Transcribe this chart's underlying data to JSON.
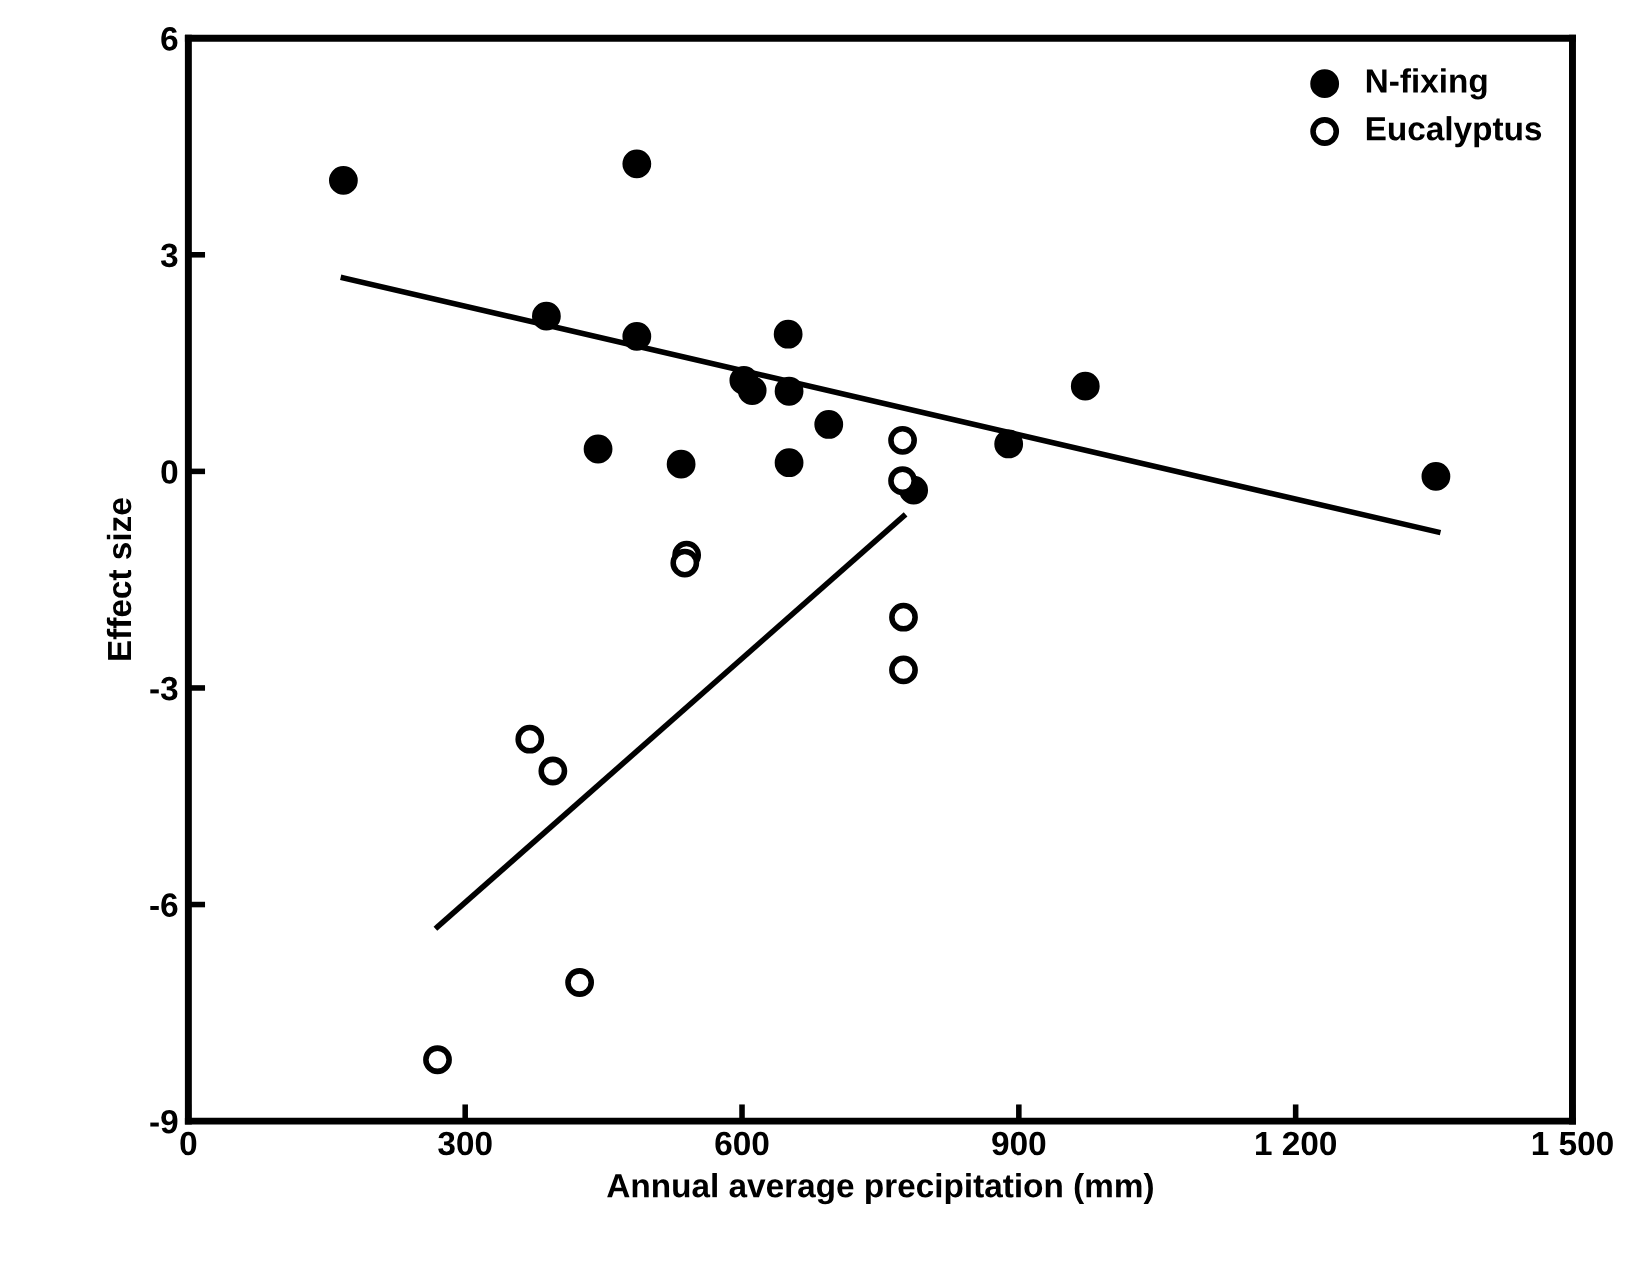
{
  "chart_data": {
    "type": "scatter",
    "xlabel": "Annual average precipitation (mm)",
    "ylabel": "Effect size",
    "xlim": [
      0,
      1500
    ],
    "xticks": [
      0,
      300,
      600,
      900,
      {
        "value": 1200,
        "label": "1 200"
      },
      {
        "value": 1500,
        "label": "1 500"
      }
    ],
    "ylim": [
      -9,
      6
    ],
    "yticks": [
      -9,
      -6,
      -3,
      0,
      3,
      6
    ],
    "grid": false,
    "legend": "top right",
    "series": [
      {
        "name": "N-fixing",
        "color": "#000000",
        "marker": "circle",
        "x": [
          168,
          486,
          388,
          486,
          650,
          602,
          611,
          651,
          694,
          444,
          534,
          651,
          786,
          972,
          889,
          1352
        ],
        "values": [
          4.03,
          4.26,
          2.15,
          1.87,
          1.9,
          1.26,
          1.12,
          1.11,
          0.65,
          0.31,
          0.1,
          0.12,
          -0.26,
          1.18,
          0.38,
          -0.07
        ]
      },
      {
        "name": "Eucalyptus",
        "color": "#ffffff",
        "marker": "circle",
        "x": [
          540,
          538,
          775,
          775,
          370,
          395,
          424,
          270,
          774,
          774
        ],
        "values": [
          -1.16,
          -1.27,
          -2.02,
          -2.75,
          -3.71,
          -4.15,
          -7.08,
          -8.15,
          0.43,
          -0.13
        ]
      },
      {
        "type": "line",
        "color": "#000000",
        "marker": "none",
        "x": [
          168,
          1354
        ],
        "values": [
          2.68,
          -0.84
        ]
      },
      {
        "type": "line",
        "color": "#000000",
        "marker": "none",
        "x": [
          270,
          775
        ],
        "values": [
          -6.31,
          -0.62
        ]
      }
    ]
  }
}
